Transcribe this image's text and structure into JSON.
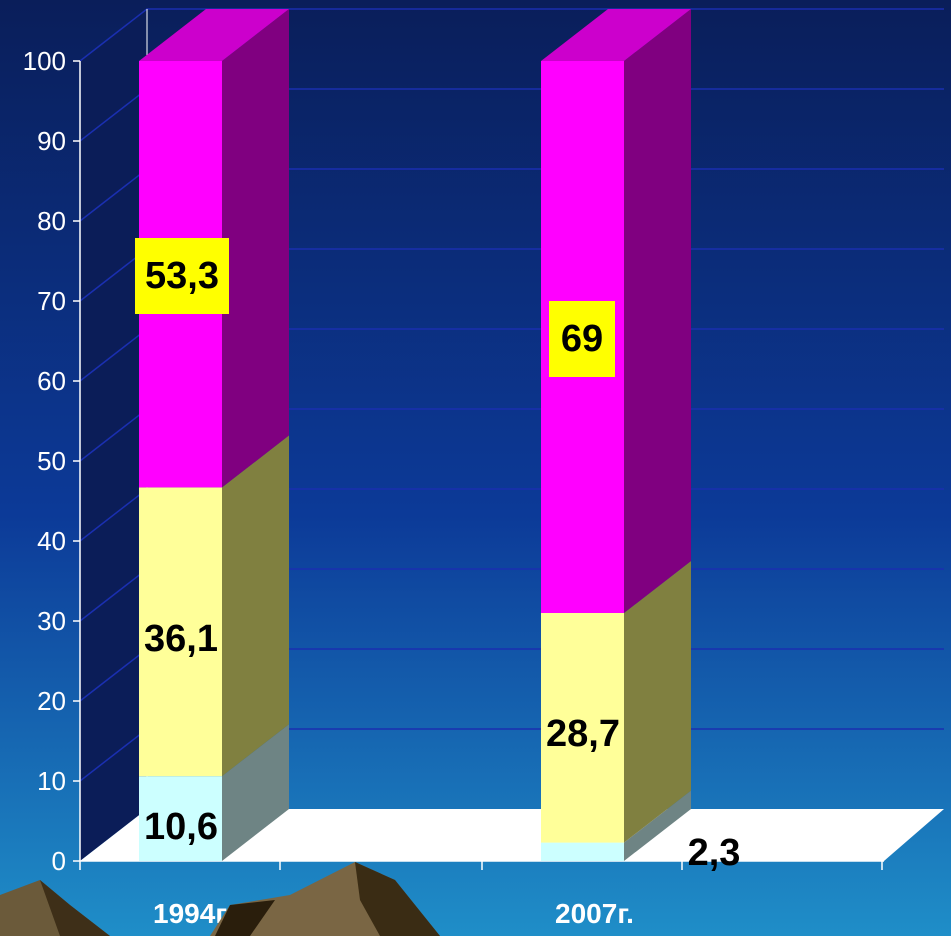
{
  "chart_data": {
    "type": "bar",
    "stacked": true,
    "categories": [
      "1994г.",
      "2007г."
    ],
    "series": [
      {
        "values": [
          10.6,
          2.3
        ]
      },
      {
        "values": [
          36.1,
          28.7
        ]
      },
      {
        "values": [
          53.3,
          69
        ]
      }
    ],
    "data_labels": [
      [
        "10,6",
        "36,1",
        "53,3"
      ],
      [
        "2,3",
        "28,7",
        "69"
      ]
    ],
    "y_ticks": [
      "0",
      "10",
      "20",
      "30",
      "40",
      "50",
      "60",
      "70",
      "80",
      "90",
      "100"
    ],
    "ylim": [
      0,
      100
    ],
    "grid": true,
    "colors": {
      "background_top": "#0a1e5a",
      "background_bottom": "#1f8ec8",
      "series": [
        "#ccffff",
        "#ffff99",
        "#ff00ff"
      ],
      "series_side": [
        "#6e8484",
        "#808040",
        "#800080"
      ],
      "series_top": [
        "#b0e0e0",
        "#e0e080",
        "#cc00cc"
      ],
      "highlight_box": "#ffff00",
      "floor": "#ffffff",
      "grid": "#1a2fb0"
    }
  }
}
